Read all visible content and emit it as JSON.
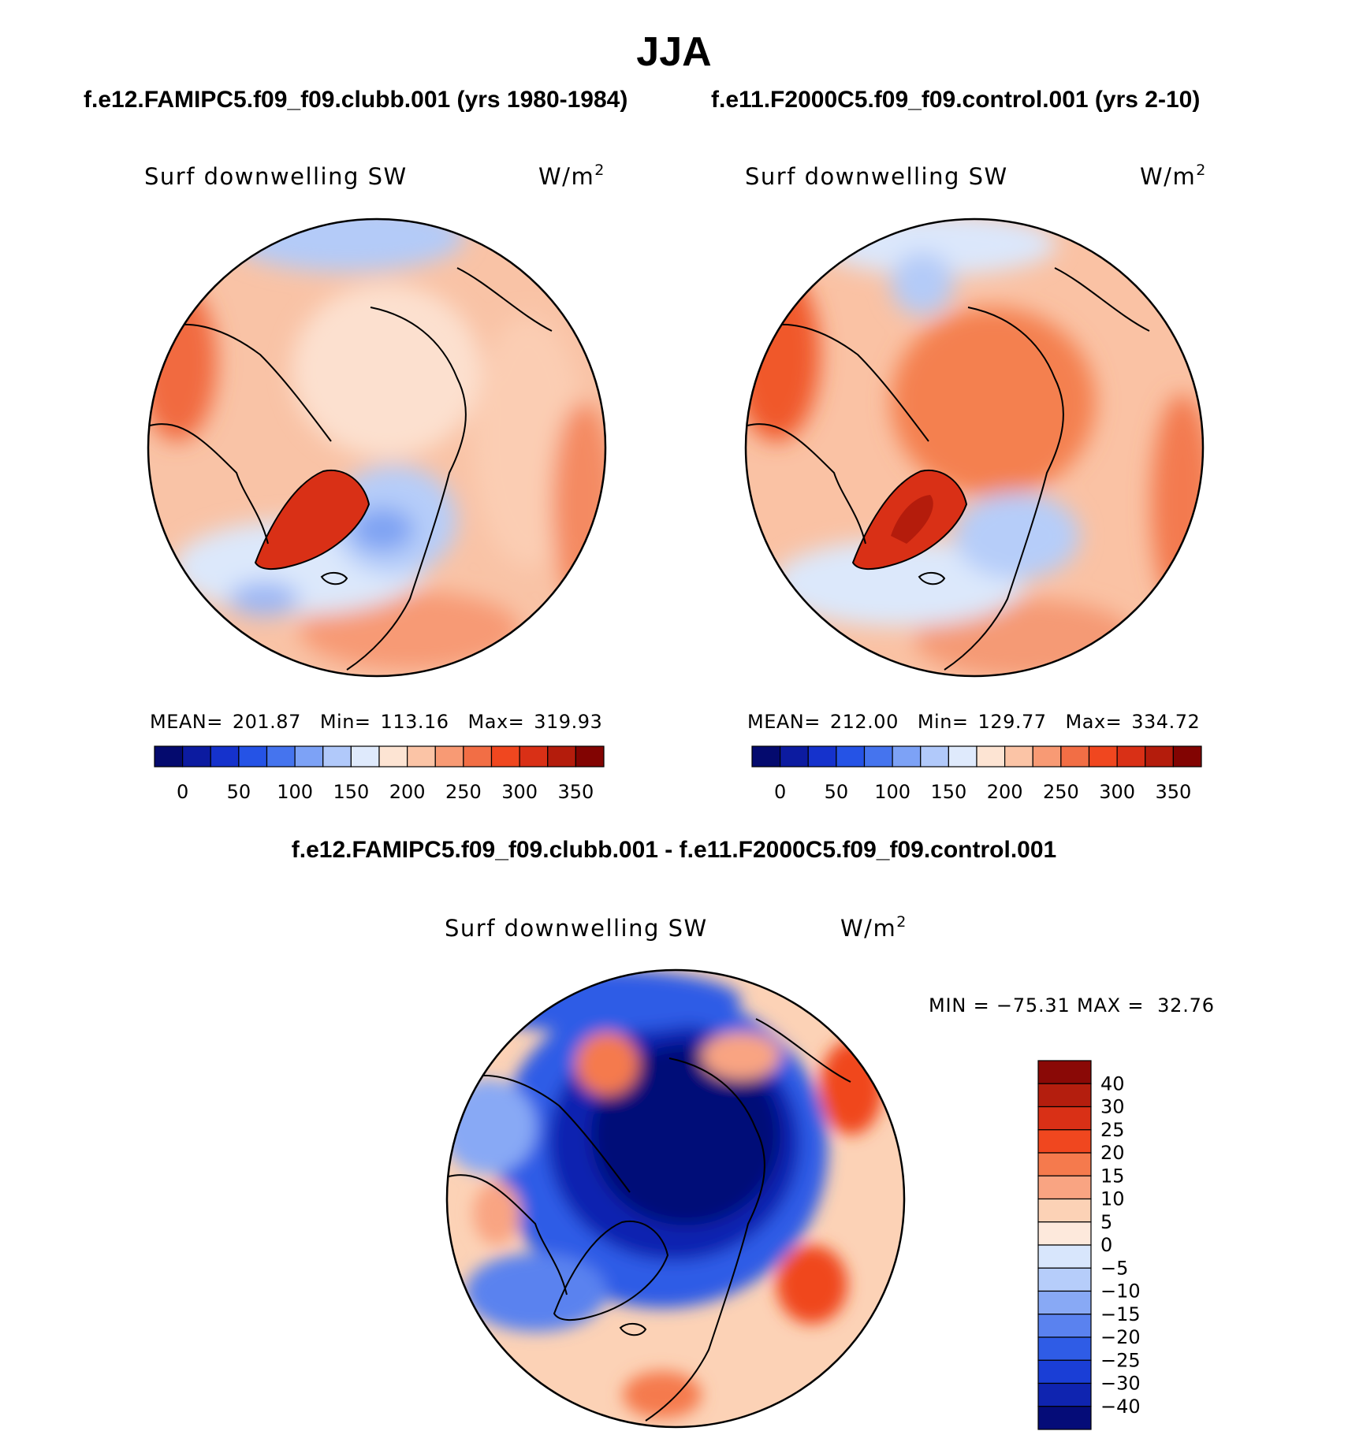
{
  "header": {
    "title": "JJA",
    "case_left": "f.e12.FAMIPC5.f09_f09.clubb.001 (yrs 1980-1984)",
    "case_right": "f.e11.F2000C5.f09_f09.control.001 (yrs 2-10)",
    "diff_title": "f.e12.FAMIPC5.f09_f09.clubb.001 - f.e11.F2000C5.f09_f09.control.001"
  },
  "chart_data": [
    {
      "type": "polar-contour-map",
      "field": "Surf downwelling SW",
      "units": "W/m",
      "units_exp": "2",
      "stats": {
        "mean_label": "MEAN=",
        "mean": "201.87",
        "min_label": "Min=",
        "min": "113.16",
        "max_label": "Max=",
        "max": "319.93"
      },
      "colorbar": {
        "ticks": [
          "0",
          "50",
          "100",
          "150",
          "200",
          "250",
          "300",
          "350"
        ],
        "colors": [
          "#040a6e",
          "#0c1ba0",
          "#1532cc",
          "#2553e6",
          "#4574ee",
          "#7da2f6",
          "#b1c9fa",
          "#dfeafc",
          "#fde4d3",
          "#fbc4a6",
          "#f89a74",
          "#f26e45",
          "#f0471f",
          "#d93016",
          "#b41c0c",
          "#820402"
        ]
      }
    },
    {
      "type": "polar-contour-map",
      "field": "Surf downwelling SW",
      "units": "W/m",
      "units_exp": "2",
      "stats": {
        "mean_label": "MEAN=",
        "mean": "212.00",
        "min_label": "Min=",
        "min": "129.77",
        "max_label": "Max=",
        "max": "334.72"
      },
      "colorbar": {
        "ticks": [
          "0",
          "50",
          "100",
          "150",
          "200",
          "250",
          "300",
          "350"
        ],
        "colors": [
          "#040a6e",
          "#0c1ba0",
          "#1532cc",
          "#2553e6",
          "#4574ee",
          "#7da2f6",
          "#b1c9fa",
          "#dfeafc",
          "#fde4d3",
          "#fbc4a6",
          "#f89a74",
          "#f26e45",
          "#f0471f",
          "#d93016",
          "#b41c0c",
          "#820402"
        ]
      }
    },
    {
      "type": "polar-contour-map",
      "field": "Surf downwelling SW",
      "units": "W/m",
      "units_exp": "2",
      "stats_line": "MIN = −75.31 MAX =  32.76",
      "colorbar": {
        "ticks_top_to_bottom": [
          "40",
          "30",
          "25",
          "20",
          "15",
          "10",
          "5",
          "0",
          "−5",
          "−10",
          "−15",
          "−20",
          "−25",
          "−30",
          "−40"
        ],
        "colors_top_to_bottom": [
          "#8a0906",
          "#b41e0e",
          "#d93016",
          "#f0471f",
          "#f57a4d",
          "#f9a482",
          "#fcd2b6",
          "#fde9dc",
          "#d8e6fc",
          "#b6cdfa",
          "#88a9f5",
          "#5a82ef",
          "#2f5ce6",
          "#1a3ed6",
          "#0f24b0",
          "#050c78"
        ]
      }
    }
  ]
}
